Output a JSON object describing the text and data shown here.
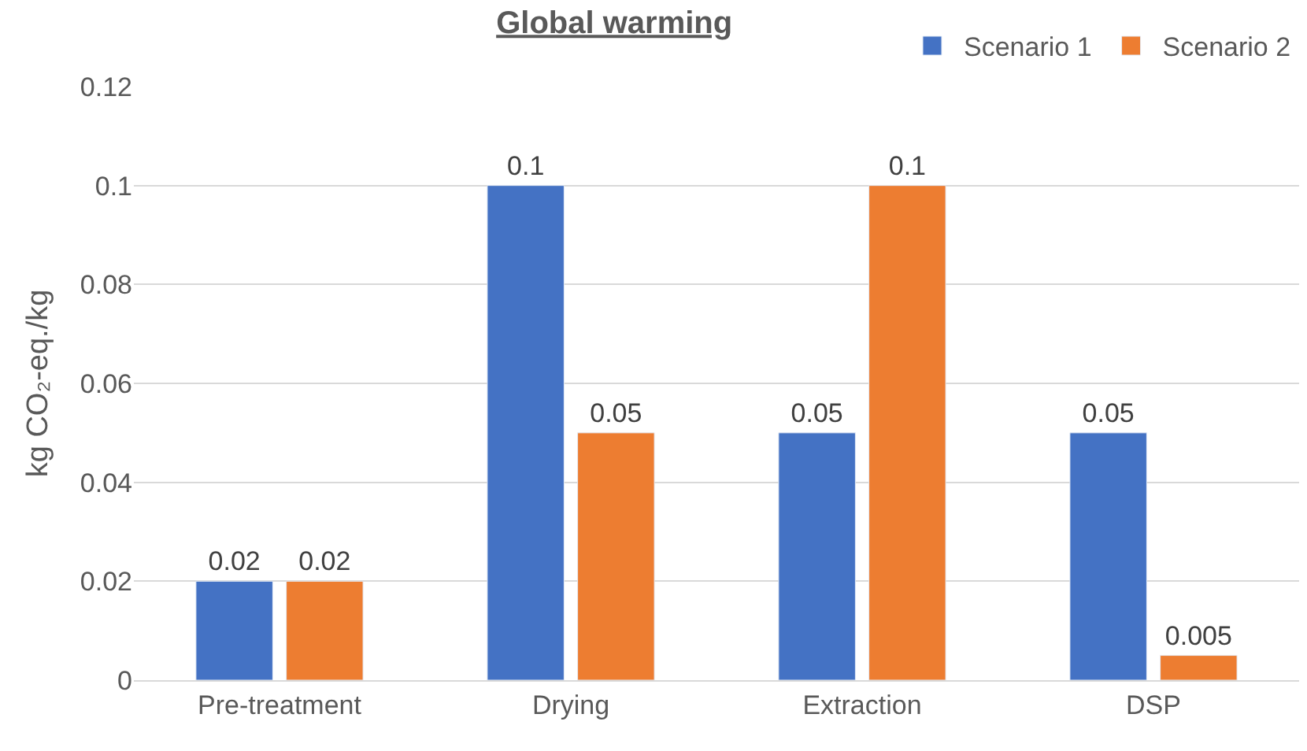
{
  "chart_data": {
    "type": "bar",
    "title": "Global warming",
    "ylabel": "kg CO₂-eq./kg",
    "categories": [
      "Pre-treatment",
      "Drying",
      "Extraction",
      "DSP"
    ],
    "series": [
      {
        "name": "Scenario 1",
        "color": "#4472c4",
        "values": [
          0.02,
          0.1,
          0.05,
          0.05
        ]
      },
      {
        "name": "Scenario 2",
        "color": "#ed7d31",
        "values": [
          0.02,
          0.05,
          0.1,
          0.005
        ]
      }
    ],
    "ylim": [
      0,
      0.12
    ],
    "yticks": [
      0,
      0.02,
      0.04,
      0.06,
      0.08,
      0.1,
      0.12
    ],
    "grid": "y",
    "legend": "top right",
    "data_labels": true
  }
}
